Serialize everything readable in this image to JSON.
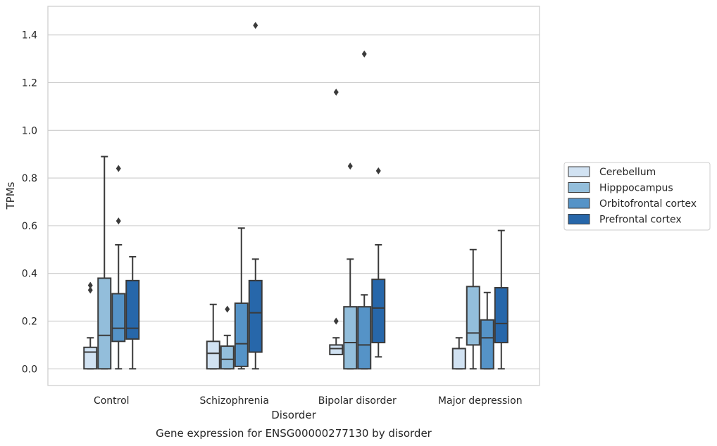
{
  "chart_data": {
    "type": "box",
    "caption": "Gene expression for ENSG00000277130 by disorder",
    "xlabel": "Disorder",
    "ylabel": "TPMs",
    "ylim": [
      -0.07,
      1.52
    ],
    "yticks": [
      0.0,
      0.2,
      0.4,
      0.6,
      0.8,
      1.0,
      1.2,
      1.4
    ],
    "ytick_labels": [
      "0.0",
      "0.2",
      "0.4",
      "0.6",
      "0.8",
      "1.0",
      "1.2",
      "1.4"
    ],
    "grid": "horizontal",
    "legend_placement": "right",
    "categories": [
      "Control",
      "Schizophrenia",
      "Bipolar disorder",
      "Major depression"
    ],
    "series": [
      {
        "name": "Cerebellum",
        "color": "#d1e2f2",
        "boxes": [
          {
            "whislo": 0.0,
            "q1": 0.0,
            "med": 0.07,
            "q3": 0.09,
            "whishi": 0.13,
            "fliers": [
              0.33,
              0.35
            ]
          },
          {
            "whislo": 0.0,
            "q1": 0.0,
            "med": 0.065,
            "q3": 0.115,
            "whishi": 0.27,
            "fliers": []
          },
          {
            "whislo": 0.06,
            "q1": 0.06,
            "med": 0.085,
            "q3": 0.1,
            "whishi": 0.13,
            "fliers": [
              0.2,
              1.16
            ]
          },
          {
            "whislo": 0.0,
            "q1": 0.0,
            "med": 0.085,
            "q3": 0.085,
            "whishi": 0.13,
            "fliers": []
          }
        ]
      },
      {
        "name": "Hipppocampus",
        "color": "#93bedb",
        "boxes": [
          {
            "whislo": 0.0,
            "q1": 0.0,
            "med": 0.14,
            "q3": 0.38,
            "whishi": 0.89,
            "fliers": []
          },
          {
            "whislo": 0.0,
            "q1": 0.0,
            "med": 0.04,
            "q3": 0.095,
            "whishi": 0.14,
            "fliers": [
              0.25
            ]
          },
          {
            "whislo": 0.0,
            "q1": 0.0,
            "med": 0.11,
            "q3": 0.26,
            "whishi": 0.46,
            "fliers": [
              0.85
            ]
          },
          {
            "whislo": 0.0,
            "q1": 0.1,
            "med": 0.15,
            "q3": 0.345,
            "whishi": 0.5,
            "fliers": []
          }
        ]
      },
      {
        "name": "Orbitofrontal cortex",
        "color": "#5593c7",
        "boxes": [
          {
            "whislo": 0.0,
            "q1": 0.115,
            "med": 0.17,
            "q3": 0.315,
            "whishi": 0.52,
            "fliers": [
              0.62,
              0.84
            ]
          },
          {
            "whislo": 0.0,
            "q1": 0.01,
            "med": 0.105,
            "q3": 0.275,
            "whishi": 0.59,
            "fliers": []
          },
          {
            "whislo": 0.0,
            "q1": 0.0,
            "med": 0.1,
            "q3": 0.26,
            "whishi": 0.31,
            "fliers": [
              1.32
            ]
          },
          {
            "whislo": 0.0,
            "q1": 0.0,
            "med": 0.13,
            "q3": 0.205,
            "whishi": 0.32,
            "fliers": []
          }
        ]
      },
      {
        "name": "Prefrontal cortex",
        "color": "#2767aa",
        "boxes": [
          {
            "whislo": 0.0,
            "q1": 0.125,
            "med": 0.17,
            "q3": 0.37,
            "whishi": 0.47,
            "fliers": []
          },
          {
            "whislo": 0.0,
            "q1": 0.07,
            "med": 0.235,
            "q3": 0.37,
            "whishi": 0.46,
            "fliers": [
              1.44
            ]
          },
          {
            "whislo": 0.05,
            "q1": 0.11,
            "med": 0.255,
            "q3": 0.375,
            "whishi": 0.52,
            "fliers": [
              0.83
            ]
          },
          {
            "whislo": 0.0,
            "q1": 0.11,
            "med": 0.19,
            "q3": 0.34,
            "whishi": 0.58,
            "fliers": []
          }
        ]
      }
    ]
  }
}
